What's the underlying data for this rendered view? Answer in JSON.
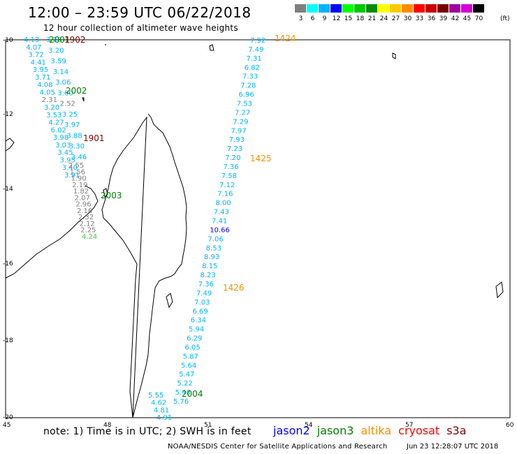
{
  "header": {
    "title": "12:00  –  23:59  UTC  06/22/2018",
    "subtitle": "12 hour collection of altimeter wave heights"
  },
  "colorbar": {
    "unit": "(ft)",
    "swatches": [
      {
        "label": "3",
        "color": "#808080"
      },
      {
        "label": "6",
        "color": "#00ffff"
      },
      {
        "label": "9",
        "color": "#00b4ff"
      },
      {
        "label": "12",
        "color": "#0000ff"
      },
      {
        "label": "15",
        "color": "#00ff00"
      },
      {
        "label": "18",
        "color": "#00c800"
      },
      {
        "label": "21",
        "color": "#008c00"
      },
      {
        "label": "24",
        "color": "#ffff00"
      },
      {
        "label": "27",
        "color": "#ffc800"
      },
      {
        "label": "30",
        "color": "#ff8c00"
      },
      {
        "label": "33",
        "color": "#ff0000"
      },
      {
        "label": "36",
        "color": "#c80000"
      },
      {
        "label": "39",
        "color": "#780000"
      },
      {
        "label": "42",
        "color": "#a000a0"
      },
      {
        "label": "45",
        "color": "#d200d2"
      },
      {
        "label": "70",
        "color": "#000000"
      }
    ]
  },
  "map": {
    "lat_labels": [
      "-10",
      "-12",
      "-14",
      "-16",
      "-18",
      "-20"
    ],
    "lon_labels": [
      "45",
      "48",
      "51",
      "54",
      "57",
      "60"
    ],
    "pass_labels": [
      {
        "text": "2001",
        "color": "#008000"
      },
      {
        "text": "1902",
        "color": "#800000"
      },
      {
        "text": "2002",
        "color": "#008000"
      },
      {
        "text": "1901",
        "color": "#800000"
      },
      {
        "text": "2003",
        "color": "#008000"
      },
      {
        "text": "1424",
        "color": "#ff8c00"
      },
      {
        "text": "1425",
        "color": "#ff8c00"
      },
      {
        "text": "1426",
        "color": "#ff8c00"
      },
      {
        "text": "2004",
        "color": "#008000"
      }
    ],
    "track_1424": [
      {
        "text": "7.92",
        "color": "#00b4ff"
      },
      {
        "text": "7.49",
        "color": "#00b4ff"
      },
      {
        "text": "7.31",
        "color": "#00b4ff"
      },
      {
        "text": "6.82",
        "color": "#00b4ff"
      },
      {
        "text": "7.33",
        "color": "#00b4ff"
      },
      {
        "text": "7.28",
        "color": "#00b4ff"
      },
      {
        "text": "6.96",
        "color": "#00b4ff"
      },
      {
        "text": "7.53",
        "color": "#00b4ff"
      },
      {
        "text": "7.27",
        "color": "#00b4ff"
      },
      {
        "text": "7.29",
        "color": "#00b4ff"
      },
      {
        "text": "7.97",
        "color": "#00b4ff"
      },
      {
        "text": "7.93",
        "color": "#00b4ff"
      },
      {
        "text": "7.23",
        "color": "#00b4ff"
      },
      {
        "text": "7.20",
        "color": "#00b4ff"
      },
      {
        "text": "7.36",
        "color": "#00b4ff"
      },
      {
        "text": "7.58",
        "color": "#00b4ff"
      },
      {
        "text": "7.12",
        "color": "#00b4ff"
      },
      {
        "text": "7.16",
        "color": "#00b4ff"
      },
      {
        "text": "8.00",
        "color": "#00b4ff"
      },
      {
        "text": "7.43",
        "color": "#00b4ff"
      },
      {
        "text": "7.41",
        "color": "#00b4ff"
      },
      {
        "text": "10.66",
        "color": "#0000ff"
      },
      {
        "text": "7.06",
        "color": "#00b4ff"
      },
      {
        "text": "8.53",
        "color": "#00b4ff"
      },
      {
        "text": "8.93",
        "color": "#00b4ff"
      },
      {
        "text": "8.15",
        "color": "#00b4ff"
      },
      {
        "text": "8.23",
        "color": "#00b4ff"
      },
      {
        "text": "7.36",
        "color": "#00b4ff"
      },
      {
        "text": "7.49",
        "color": "#00b4ff"
      },
      {
        "text": "7.03",
        "color": "#00b4ff"
      },
      {
        "text": "6.69",
        "color": "#00b4ff"
      },
      {
        "text": "6.34",
        "color": "#00b4ff"
      },
      {
        "text": "5.94",
        "color": "#00b4ff"
      },
      {
        "text": "6.29",
        "color": "#00b4ff"
      },
      {
        "text": "6.05",
        "color": "#00b4ff"
      },
      {
        "text": "5.87",
        "color": "#00b4ff"
      },
      {
        "text": "5.64",
        "color": "#00b4ff"
      },
      {
        "text": "5.47",
        "color": "#00b4ff"
      },
      {
        "text": "5.22",
        "color": "#00b4ff"
      },
      {
        "text": "5.48",
        "color": "#00b4ff"
      },
      {
        "text": "5.76",
        "color": "#00b4ff"
      }
    ],
    "track_2004_left": [
      {
        "text": "5.55",
        "color": "#00b4ff"
      },
      {
        "text": "4.62",
        "color": "#00b4ff"
      },
      {
        "text": "4.81",
        "color": "#00b4ff"
      },
      {
        "text": "4.91",
        "color": "#00b4ff"
      }
    ],
    "track_west": [
      {
        "text": "4.13",
        "color": "#00b4ff"
      },
      {
        "text": "4.07",
        "color": "#00b4ff"
      },
      {
        "text": "3.72",
        "color": "#00b4ff"
      },
      {
        "text": "4.41",
        "color": "#00b4ff"
      },
      {
        "text": "3.95",
        "color": "#00b4ff"
      },
      {
        "text": "3.71",
        "color": "#00b4ff"
      },
      {
        "text": "4.08",
        "color": "#00b4ff"
      },
      {
        "text": "4.05",
        "color": "#00b4ff"
      },
      {
        "text": "2.31",
        "color": "#808080"
      },
      {
        "text": "3.20",
        "color": "#00b4ff"
      },
      {
        "text": "3.53",
        "color": "#00b4ff"
      },
      {
        "text": "4.27",
        "color": "#00b4ff"
      },
      {
        "text": "6.02",
        "color": "#00b4ff"
      },
      {
        "text": "3.98",
        "color": "#00b4ff"
      },
      {
        "text": "3.03",
        "color": "#00b4ff"
      },
      {
        "text": "3.45",
        "color": "#00b4ff"
      },
      {
        "text": "3.95",
        "color": "#00b4ff"
      },
      {
        "text": "3.40",
        "color": "#00b4ff"
      },
      {
        "text": "3.91",
        "color": "#00b4ff"
      }
    ],
    "track_west2": [
      {
        "text": "3.23",
        "color": "#00b4ff"
      },
      {
        "text": "3.20",
        "color": "#00b4ff"
      },
      {
        "text": "3.59",
        "color": "#00b4ff"
      },
      {
        "text": "3.14",
        "color": "#00b4ff"
      },
      {
        "text": "3.06",
        "color": "#00b4ff"
      },
      {
        "text": "3.60",
        "color": "#00b4ff"
      },
      {
        "text": "2.52",
        "color": "#808080"
      },
      {
        "text": "3.25",
        "color": "#00b4ff"
      },
      {
        "text": "3.97",
        "color": "#00b4ff"
      },
      {
        "text": "3.88",
        "color": "#00b4ff"
      },
      {
        "text": "3.30",
        "color": "#00b4ff"
      },
      {
        "text": "3.46",
        "color": "#00b4ff"
      }
    ],
    "track_grey": [
      {
        "text": "2.55",
        "color": "#808080"
      },
      {
        "text": "1.56",
        "color": "#808080"
      },
      {
        "text": "1.90",
        "color": "#808080"
      },
      {
        "text": "2.19",
        "color": "#808080"
      },
      {
        "text": "1.82",
        "color": "#808080"
      },
      {
        "text": "2.07",
        "color": "#808080"
      },
      {
        "text": "2.96",
        "color": "#808080"
      },
      {
        "text": "2.16",
        "color": "#808080"
      },
      {
        "text": "2.32",
        "color": "#808080"
      },
      {
        "text": "2.12",
        "color": "#808080"
      },
      {
        "text": "2.25",
        "color": "#808080"
      },
      {
        "text": "4.24",
        "color": "#40d040"
      }
    ]
  },
  "footer": {
    "note": "note:  1) Time is in UTC;  2) SWH is in feet",
    "satellites": [
      {
        "name": "jason2",
        "color": "#0000ff"
      },
      {
        "name": "jason3",
        "color": "#008000"
      },
      {
        "name": "altika",
        "color": "#ff8c00"
      },
      {
        "name": "cryosat",
        "color": "#ff0000"
      },
      {
        "name": "s3a",
        "color": "#800000"
      }
    ],
    "credit": "NOAA/NESDIS Center for Satellite Applications and Research",
    "timestamp": "Jun 23 12:28:07 UTC 2018"
  }
}
